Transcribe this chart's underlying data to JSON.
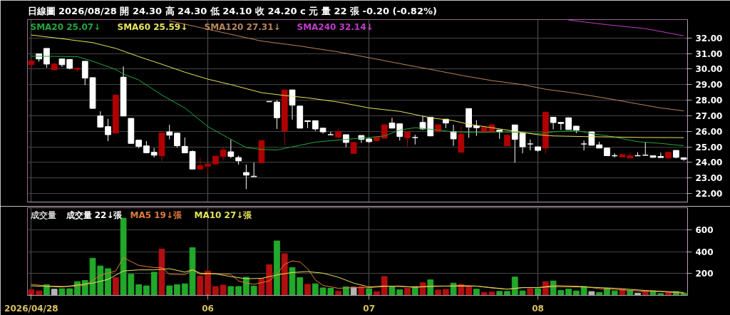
{
  "chart_data": [
    {
      "type": "candlestick",
      "title": "日線圖  2026/08/28  開 24.30  高 24.30  低 24.10  收 24.20  c 元  量 22 張  -0.20 (-0.82%)",
      "categories": [
        "2026/04/28",
        null,
        null,
        null,
        null,
        null,
        null,
        null,
        null,
        null,
        null,
        null,
        null,
        null,
        null,
        null,
        null,
        null,
        null,
        null,
        null,
        null,
        null,
        "06",
        null,
        null,
        null,
        null,
        null,
        null,
        null,
        null,
        null,
        null,
        null,
        null,
        null,
        null,
        null,
        null,
        null,
        null,
        null,
        null,
        "07",
        null,
        null,
        null,
        null,
        null,
        null,
        null,
        null,
        null,
        null,
        null,
        null,
        null,
        null,
        null,
        null,
        null,
        null,
        null,
        null,
        null,
        "08",
        null,
        null,
        null,
        null,
        null,
        null,
        null,
        null,
        null,
        null,
        null,
        null,
        null,
        null,
        null,
        null,
        null,
        null,
        null
      ],
      "ohlc": [
        [
          30.28,
          30.53,
          29.98,
          30.53
        ],
        [
          30.98,
          30.98,
          30.47,
          30.65
        ],
        [
          31.33,
          31.33,
          30.08,
          30.32
        ],
        [
          29.95,
          30.43,
          29.95,
          30.32
        ],
        [
          30.65,
          30.65,
          30.13,
          30.28
        ],
        [
          30.62,
          30.62,
          29.98,
          30.05
        ],
        [
          29.98,
          30.05,
          29.83,
          30.05
        ],
        [
          30.5,
          30.5,
          28.97,
          29.42
        ],
        [
          29.45,
          29.45,
          27.47,
          27.47
        ],
        [
          26.98,
          27.28,
          26.23,
          26.27
        ],
        [
          26.3,
          26.8,
          25.37,
          25.78
        ],
        [
          25.88,
          28.33,
          25.88,
          28.33
        ],
        [
          29.48,
          30.17,
          26.98,
          26.98
        ],
        [
          26.83,
          26.83,
          25.22,
          25.22
        ],
        [
          25.43,
          25.43,
          24.92,
          25.03
        ],
        [
          25.06,
          25.37,
          24.58,
          24.62
        ],
        [
          24.65,
          24.92,
          24.32,
          24.46
        ],
        [
          24.43,
          25.9,
          24.08,
          25.9
        ],
        [
          25.96,
          26.42,
          25.48,
          25.75
        ],
        [
          25.88,
          25.88,
          24.95,
          25.07
        ],
        [
          25.03,
          25.6,
          24.58,
          24.61
        ],
        [
          24.7,
          24.77,
          23.57,
          23.57
        ],
        [
          23.57,
          24.31,
          23.57,
          23.8
        ],
        [
          23.75,
          23.9,
          23.3,
          23.9
        ],
        [
          23.9,
          24.4,
          23.83,
          24.4
        ],
        [
          24.38,
          24.95,
          24.17,
          24.8
        ],
        [
          24.68,
          25.48,
          24.28,
          24.38
        ],
        [
          24.31,
          24.43,
          23.86,
          24.1
        ],
        [
          23.35,
          23.86,
          22.28,
          23.18
        ],
        [
          23.11,
          23.98,
          23.08,
          23.08
        ],
        [
          23.98,
          25.4,
          23.98,
          25.4
        ],
        [
          27.91,
          27.91,
          27.91,
          27.91
        ],
        [
          27.88,
          28.0,
          26.15,
          26.87
        ],
        [
          26.03,
          28.66,
          25.1,
          28.66
        ],
        [
          28.66,
          28.66,
          26.75,
          27.68
        ],
        [
          27.62,
          27.62,
          26.2,
          26.2
        ],
        [
          26.68,
          26.68,
          26.2,
          26.63
        ],
        [
          26.68,
          26.68,
          26.03,
          26.15
        ],
        [
          26.2,
          26.2,
          25.85,
          25.96
        ],
        [
          25.78,
          25.97,
          25.78,
          25.78
        ],
        [
          25.63,
          26.11,
          25.55,
          25.97
        ],
        [
          25.78,
          25.78,
          24.98,
          25.28
        ],
        [
          24.58,
          25.28,
          24.58,
          25.28
        ],
        [
          25.73,
          25.73,
          25.25,
          25.48
        ],
        [
          25.51,
          25.6,
          25.25,
          25.33
        ],
        [
          25.4,
          25.63,
          25.33,
          25.63
        ],
        [
          25.55,
          26.42,
          25.55,
          26.42
        ],
        [
          26.53,
          26.87,
          26.2,
          26.2
        ],
        [
          26.48,
          26.48,
          25.4,
          25.66
        ],
        [
          25.58,
          25.97,
          25.03,
          25.97
        ],
        [
          25.6,
          25.78,
          25.15,
          25.6
        ],
        [
          26.57,
          26.98,
          26.08,
          26.15
        ],
        [
          26.9,
          26.9,
          25.7,
          25.7
        ],
        [
          25.97,
          26.42,
          25.97,
          26.42
        ],
        [
          26.78,
          26.78,
          26.2,
          26.53
        ],
        [
          25.97,
          26.42,
          25.06,
          25.51
        ],
        [
          24.65,
          26.35,
          24.65,
          25.82
        ],
        [
          27.46,
          27.46,
          25.58,
          26.27
        ],
        [
          26.35,
          26.71,
          25.7,
          26.23
        ],
        [
          25.93,
          26.27,
          25.93,
          26.27
        ],
        [
          25.93,
          26.42,
          25.93,
          26.42
        ],
        [
          26.08,
          26.08,
          25.51,
          25.96
        ],
        [
          25.06,
          25.75,
          25.06,
          25.75
        ],
        [
          26.41,
          26.41,
          23.98,
          25.48
        ],
        [
          25.88,
          25.88,
          24.58,
          25.0
        ],
        [
          25.18,
          25.48,
          24.77,
          25.18
        ],
        [
          25.0,
          25.0,
          24.68,
          24.77
        ],
        [
          24.92,
          27.23,
          24.55,
          27.23
        ],
        [
          26.9,
          26.9,
          26.12,
          26.56
        ],
        [
          26.57,
          26.57,
          26.08,
          26.5
        ],
        [
          26.87,
          26.87,
          26.11,
          26.11
        ],
        [
          26.33,
          26.33,
          25.88,
          26.08
        ],
        [
          25.18,
          25.4,
          24.77,
          25.18
        ],
        [
          25.96,
          25.96,
          25.1,
          25.1
        ],
        [
          25.13,
          25.33,
          24.92,
          24.92
        ],
        [
          24.92,
          24.92,
          24.43,
          24.43
        ],
        [
          24.43,
          24.58,
          24.32,
          24.43
        ],
        [
          24.35,
          24.53,
          24.32,
          24.5
        ],
        [
          24.28,
          24.62,
          24.28,
          24.43
        ],
        [
          24.43,
          24.65,
          24.43,
          24.43
        ],
        [
          24.46,
          25.28,
          24.46,
          24.46
        ],
        [
          24.43,
          24.43,
          24.32,
          24.32
        ],
        [
          24.38,
          24.62,
          24.31,
          24.31
        ],
        [
          24.28,
          24.65,
          24.28,
          24.65
        ],
        [
          24.77,
          24.77,
          24.26,
          24.32
        ],
        [
          24.3,
          24.3,
          24.1,
          24.2
        ]
      ],
      "colors": [
        "#b00000",
        "#ffffff",
        "#ffffff",
        "#b00000",
        "#ffffff",
        "#ffffff",
        "#b00000",
        "#ffffff",
        "#ffffff",
        "#ffffff",
        "#ffffff",
        "#b00000",
        "#ffffff",
        "#ffffff",
        "#ffffff",
        "#ffffff",
        "#ffffff",
        "#b00000",
        "#ffffff",
        "#ffffff",
        "#ffffff",
        "#ffffff",
        "#b00000",
        "#b00000",
        "#b00000",
        "#b00000",
        "#ffffff",
        "#ffffff",
        "#ffffff",
        "#ffffff",
        "#b00000",
        "#ffffff",
        "#ffffff",
        "#b00000",
        "#ffffff",
        "#ffffff",
        "#ffffff",
        "#ffffff",
        "#ffffff",
        "#ffffff",
        "#b00000",
        "#ffffff",
        "#b00000",
        "#ffffff",
        "#ffffff",
        "#b00000",
        "#b00000",
        "#ffffff",
        "#ffffff",
        "#b00000",
        "#ffffff",
        "#ffffff",
        "#ffffff",
        "#b00000",
        "#ffffff",
        "#ffffff",
        "#b00000",
        "#ffffff",
        "#ffffff",
        "#b00000",
        "#b00000",
        "#ffffff",
        "#b00000",
        "#ffffff",
        "#ffffff",
        "#ffffff",
        "#ffffff",
        "#b00000",
        "#ffffff",
        "#ffffff",
        "#ffffff",
        "#ffffff",
        "#ffffff",
        "#ffffff",
        "#ffffff",
        "#ffffff",
        "#ffffff",
        "#b00000",
        "#b00000",
        "#ffffff",
        "#ffffff",
        "#ffffff",
        "#ffffff",
        "#b00000",
        "#ffffff",
        "#ffffff"
      ],
      "series": [
        {
          "name": "SMA20 25.07↓",
          "type": "line",
          "color": "#22a83a",
          "values": [
            30.83,
            null,
            null,
            null,
            null,
            null,
            30.8,
            null,
            30.5,
            null,
            null,
            29.98,
            29.68,
            null,
            29.3,
            null,
            null,
            28.33,
            null,
            null,
            27.5,
            null,
            null,
            26.3,
            null,
            null,
            25.48,
            null,
            24.95,
            null,
            24.83,
            null,
            24.8,
            null,
            null,
            25.1,
            null,
            25.3,
            null,
            null,
            null,
            25.48,
            null,
            null,
            25.6,
            null,
            25.7,
            null,
            26.08,
            null,
            26.23,
            null,
            null,
            26.08,
            null,
            25.96,
            null,
            null,
            25.93,
            null,
            null,
            25.96,
            null,
            null,
            25.93,
            null,
            25.85,
            null,
            25.96,
            null,
            null,
            26.05,
            null,
            25.85,
            null,
            null,
            25.63,
            null,
            null,
            25.33,
            null,
            null,
            25.22,
            null,
            null,
            25.07
          ]
        },
        {
          "name": "SMA60 25.59↓",
          "type": "line",
          "color": "#e6e35a",
          "values": [
            32.19,
            null,
            null,
            null,
            31.95,
            null,
            null,
            null,
            31.7,
            null,
            null,
            31.33,
            null,
            null,
            30.8,
            null,
            null,
            30.31,
            null,
            null,
            29.8,
            null,
            null,
            29.35,
            null,
            null,
            29.0,
            null,
            null,
            null,
            28.48,
            null,
            null,
            28.3,
            null,
            null,
            28.15,
            null,
            null,
            null,
            27.88,
            null,
            null,
            null,
            27.5,
            null,
            null,
            null,
            27.28,
            null,
            null,
            null,
            26.87,
            null,
            null,
            26.68,
            null,
            26.45,
            null,
            null,
            26.23,
            null,
            null,
            26.0,
            null,
            null,
            25.78,
            null,
            25.7,
            null,
            null,
            null,
            25.66,
            null,
            null,
            null,
            25.63,
            null,
            null,
            null,
            25.6,
            null,
            null,
            null,
            null,
            25.59
          ]
        },
        {
          "name": "SMA120 27.31↓",
          "type": "line",
          "color": "#b8865a",
          "values": [
            null,
            null,
            null,
            null,
            null,
            null,
            null,
            null,
            null,
            null,
            null,
            null,
            null,
            null,
            null,
            null,
            null,
            null,
            33.1,
            null,
            null,
            null,
            null,
            null,
            null,
            null,
            null,
            null,
            null,
            null,
            31.8,
            null,
            null,
            null,
            null,
            31.48,
            null,
            null,
            null,
            null,
            31.1,
            null,
            null,
            null,
            30.73,
            null,
            null,
            null,
            30.35,
            null,
            null,
            null,
            29.98,
            null,
            null,
            null,
            29.6,
            null,
            null,
            null,
            29.26,
            null,
            null,
            null,
            29.0,
            null,
            null,
            28.7,
            null,
            null,
            28.51,
            null,
            null,
            28.28,
            null,
            null,
            28.03,
            null,
            null,
            27.76,
            null,
            null,
            27.5,
            null,
            null,
            27.31
          ]
        },
        {
          "name": "SMA240 32.14↓",
          "type": "line",
          "color": "#c03cc8",
          "values": [
            null,
            null,
            null,
            null,
            null,
            null,
            null,
            null,
            null,
            null,
            null,
            null,
            null,
            null,
            null,
            null,
            null,
            null,
            null,
            null,
            null,
            null,
            null,
            null,
            null,
            null,
            null,
            null,
            null,
            null,
            null,
            null,
            null,
            null,
            null,
            null,
            null,
            null,
            null,
            null,
            null,
            null,
            null,
            null,
            null,
            null,
            null,
            null,
            null,
            null,
            null,
            null,
            null,
            null,
            null,
            null,
            null,
            null,
            null,
            null,
            null,
            null,
            null,
            null,
            null,
            null,
            null,
            null,
            null,
            null,
            33.15,
            null,
            null,
            null,
            null,
            32.85,
            null,
            null,
            null,
            null,
            32.6,
            null,
            null,
            null,
            null,
            32.14
          ]
        }
      ],
      "ylim": [
        21.45,
        33.18
      ],
      "yticks": [
        {
          "value": 22,
          "label": "22.00"
        },
        {
          "value": 23,
          "label": "23.00"
        },
        {
          "value": 24,
          "label": "24.00"
        },
        {
          "value": 25,
          "label": "25.00"
        },
        {
          "value": 26,
          "label": "26.00"
        },
        {
          "value": 27,
          "label": "27.00"
        },
        {
          "value": 28,
          "label": "28.00"
        },
        {
          "value": 29,
          "label": "29.00"
        },
        {
          "value": 30,
          "label": "30.00"
        },
        {
          "value": 31,
          "label": "31.00"
        },
        {
          "value": 32,
          "label": "32.00"
        }
      ],
      "tick_labels": "y",
      "grid": true,
      "legend": "top left"
    },
    {
      "type": "bar",
      "title": "成交量",
      "annotations": [
        "成交量 22↓張"
      ],
      "categories": [
        "2026/04/28",
        null,
        null,
        null,
        null,
        null,
        null,
        null,
        null,
        null,
        null,
        null,
        null,
        null,
        null,
        null,
        null,
        null,
        null,
        null,
        null,
        null,
        null,
        "06",
        null,
        null,
        null,
        null,
        null,
        null,
        null,
        null,
        null,
        null,
        null,
        null,
        null,
        null,
        null,
        null,
        null,
        null,
        null,
        null,
        "07",
        null,
        null,
        null,
        null,
        null,
        null,
        null,
        null,
        null,
        null,
        null,
        null,
        null,
        null,
        null,
        null,
        null,
        null,
        null,
        null,
        null,
        "08",
        null,
        null,
        null,
        null,
        null,
        null,
        null,
        null,
        null,
        null,
        null,
        null,
        null,
        null,
        null,
        null,
        null,
        null,
        null
      ],
      "series": [
        {
          "type": "bar",
          "values": [
            51,
            41,
            98,
            57,
            61,
            61,
            126,
            136,
            339,
            269,
            244,
            162,
            705,
            193,
            98,
            87,
            212,
            423,
            87,
            98,
            106,
            435,
            177,
            223,
            81,
            94,
            81,
            81,
            166,
            85,
            155,
            280,
            497,
            380,
            254,
            162,
            101,
            106,
            69,
            65,
            37,
            79,
            75,
            81,
            61,
            35,
            172,
            77,
            51,
            65,
            81,
            116,
            142,
            49,
            55,
            112,
            101,
            81,
            57,
            27,
            31,
            37,
            37,
            168,
            41,
            61,
            61,
            126,
            132,
            45,
            57,
            41,
            81,
            35,
            27,
            65,
            41,
            55,
            45,
            21,
            41,
            41,
            17,
            25,
            35,
            22
          ],
          "colors": [
            "#b01010",
            "#b01010",
            "#22a82a",
            "#b4b4b4",
            "#22a82a",
            "#22a82a",
            "#22a82a",
            "#22a82a",
            "#22a82a",
            "#22a82a",
            "#22a82a",
            "#b01010",
            "#22a82a",
            "#22a82a",
            "#22a82a",
            "#22a82a",
            "#22a82a",
            "#b01010",
            "#22a82a",
            "#22a82a",
            "#22a82a",
            "#22a82a",
            "#b01010",
            "#b01010",
            "#b01010",
            "#b01010",
            "#22a82a",
            "#22a82a",
            "#22a82a",
            "#22a82a",
            "#b01010",
            "#b01010",
            "#22a82a",
            "#b01010",
            "#22a82a",
            "#22a82a",
            "#b01010",
            "#22a82a",
            "#22a82a",
            "#22a82a",
            "#b01010",
            "#22a82a",
            "#b4b4b4",
            "#b01010",
            "#22a82a",
            "#b01010",
            "#b01010",
            "#22a82a",
            "#22a82a",
            "#b01010",
            "#22a82a",
            "#b01010",
            "#22a82a",
            "#b01010",
            "#b01010",
            "#22a82a",
            "#b01010",
            "#b01010",
            "#22a82a",
            "#b01010",
            "#b01010",
            "#22a82a",
            "#22a82a",
            "#22a82a",
            "#22a82a",
            "#b01010",
            "#22a82a",
            "#b01010",
            "#22a82a",
            "#22a82a",
            "#22a82a",
            "#22a82a",
            "#22a82a",
            "#b4b4b4",
            "#22a82a",
            "#22a82a",
            "#22a82a",
            "#b01010",
            "#22a82a",
            "#b4b4b4",
            "#b01010",
            "#22a82a",
            "#22a82a",
            "#b01010",
            "#22a82a",
            "#22a82a"
          ]
        },
        {
          "name": "MA5 19↓張",
          "type": "line",
          "color": "#e07a3a",
          "values": [
            101,
            null,
            87,
            null,
            null,
            81,
            null,
            91,
            null,
            183,
            null,
            223,
            345,
            null,
            274,
            null,
            254,
            254,
            193,
            null,
            189,
            233,
            193,
            null,
            199,
            null,
            193,
            132,
            112,
            101,
            null,
            132,
            193,
            284,
            315,
            305,
            244,
            142,
            91,
            null,
            65,
            null,
            71,
            null,
            71,
            null,
            81,
            null,
            87,
            null,
            71,
            null,
            87,
            null,
            85,
            null,
            91,
            null,
            85,
            null,
            67,
            null,
            57,
            null,
            71,
            null,
            71,
            null,
            91,
            null,
            87,
            null,
            81,
            null,
            61,
            null,
            55,
            null,
            45,
            null,
            37,
            null,
            35,
            null,
            null,
            19
          ]
        },
        {
          "name": "MA10 27↓張",
          "type": "line",
          "color": "#e6e35a",
          "values": [
            87,
            null,
            null,
            null,
            77,
            null,
            null,
            null,
            112,
            null,
            146,
            null,
            223,
            null,
            233,
            null,
            233,
            null,
            244,
            null,
            213,
            233,
            203,
            null,
            197,
            null,
            172,
            null,
            152,
            null,
            156,
            null,
            187,
            null,
            209,
            null,
            217,
            null,
            203,
            null,
            166,
            null,
            112,
            null,
            77,
            null,
            85,
            null,
            null,
            null,
            77,
            null,
            null,
            null,
            85,
            null,
            null,
            null,
            85,
            null,
            null,
            null,
            57,
            null,
            71,
            null,
            71,
            null,
            81,
            null,
            null,
            null,
            77,
            null,
            null,
            null,
            65,
            null,
            null,
            null,
            45,
            null,
            null,
            null,
            null,
            27
          ]
        }
      ],
      "ylim": [
        0,
        800
      ],
      "yticks": [
        200,
        400,
        600
      ],
      "grid": true,
      "legend": "top left"
    }
  ]
}
